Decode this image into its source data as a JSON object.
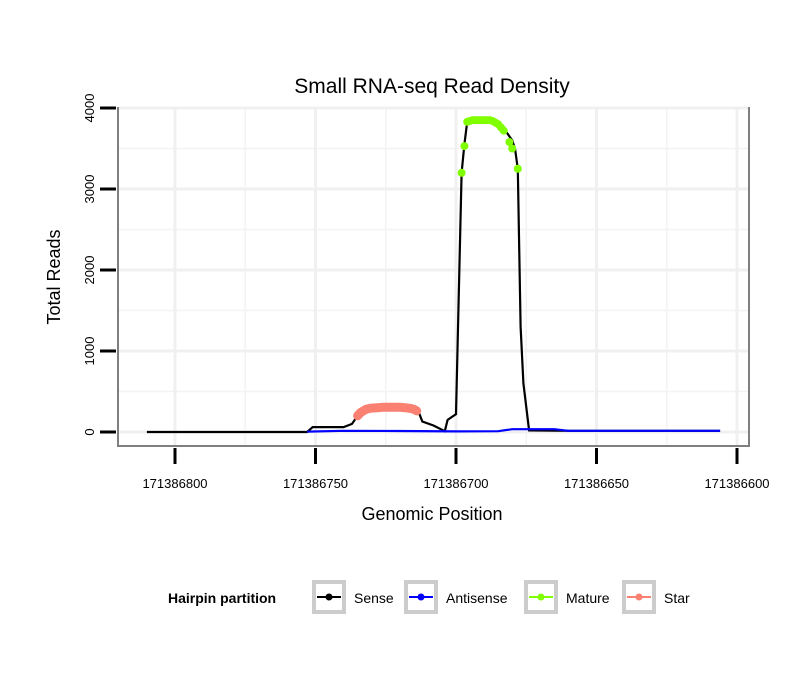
{
  "chart_data": {
    "type": "line",
    "title": "Small RNA-seq Read Density",
    "xlabel": "Genomic Position",
    "ylabel": "Total Reads",
    "xlim": [
      171386820,
      171386595
    ],
    "ylim": [
      -150,
      4150
    ],
    "x_reversed": true,
    "xticks": [
      171386800,
      171386750,
      171386700,
      171386650,
      171386600
    ],
    "xtick_labels": [
      "171386800",
      "171386750",
      "171386700",
      "171386650",
      "171386600"
    ],
    "yticks": [
      0,
      1000,
      2000,
      3000,
      4000
    ],
    "ytick_labels": [
      "0",
      "1000",
      "2000",
      "3000",
      "4000"
    ],
    "grid": true,
    "legend": {
      "title": "Hairpin partition",
      "placement": "bottom",
      "entries": [
        "Sense",
        "Antisense",
        "Mature",
        "Star"
      ]
    },
    "colors": {
      "Sense": "#000000",
      "Antisense": "#0000ff",
      "Mature": "#7fff00",
      "Star": "#fa8072"
    },
    "series": [
      {
        "name": "Sense",
        "points": [
          [
            171386810,
            0
          ],
          [
            171386753,
            0
          ],
          [
            171386751,
            60
          ],
          [
            171386740,
            60
          ],
          [
            171386737,
            100
          ],
          [
            171386735,
            200
          ],
          [
            171386732,
            260
          ],
          [
            171386727,
            300
          ],
          [
            171386720,
            300
          ],
          [
            171386715,
            280
          ],
          [
            171386713,
            220
          ],
          [
            171386712,
            130
          ],
          [
            171386708,
            80
          ],
          [
            171386704,
            10
          ],
          [
            171386703,
            150
          ],
          [
            171386700,
            220
          ],
          [
            171386698,
            3200
          ],
          [
            171386697,
            3550
          ],
          [
            171386696,
            3830
          ],
          [
            171386692,
            3850
          ],
          [
            171386686,
            3850
          ],
          [
            171386683,
            3750
          ],
          [
            171386680,
            3600
          ],
          [
            171386679,
            3500
          ],
          [
            171386678,
            3250
          ],
          [
            171386677,
            1300
          ],
          [
            171386676,
            600
          ],
          [
            171386674,
            20
          ],
          [
            171386660,
            15
          ],
          [
            171386606,
            15
          ]
        ]
      },
      {
        "name": "Antisense",
        "points": [
          [
            171386753,
            5
          ],
          [
            171386740,
            15
          ],
          [
            171386720,
            12
          ],
          [
            171386700,
            8
          ],
          [
            171386685,
            10
          ],
          [
            171386680,
            35
          ],
          [
            171386665,
            35
          ],
          [
            171386660,
            15
          ],
          [
            171386606,
            15
          ]
        ]
      },
      {
        "name": "Mature",
        "points": [
          [
            171386698,
            3200
          ],
          [
            171386697,
            3530
          ],
          [
            171386696,
            3830
          ],
          [
            171386695,
            3840
          ],
          [
            171386694,
            3850
          ],
          [
            171386693,
            3850
          ],
          [
            171386692,
            3850
          ],
          [
            171386691,
            3850
          ],
          [
            171386690,
            3850
          ],
          [
            171386689,
            3850
          ],
          [
            171386688,
            3850
          ],
          [
            171386687,
            3840
          ],
          [
            171386686,
            3820
          ],
          [
            171386685,
            3800
          ],
          [
            171386684,
            3760
          ],
          [
            171386683,
            3720
          ],
          [
            171386681,
            3580
          ],
          [
            171386680,
            3500
          ],
          [
            171386678,
            3250
          ]
        ]
      },
      {
        "name": "Star",
        "points": [
          [
            171386735,
            200
          ],
          [
            171386734,
            240
          ],
          [
            171386733,
            260
          ],
          [
            171386732,
            280
          ],
          [
            171386731,
            290
          ],
          [
            171386730,
            295
          ],
          [
            171386728,
            300
          ],
          [
            171386726,
            305
          ],
          [
            171386724,
            305
          ],
          [
            171386722,
            305
          ],
          [
            171386720,
            305
          ],
          [
            171386718,
            300
          ],
          [
            171386716,
            290
          ],
          [
            171386715,
            280
          ],
          [
            171386714,
            260
          ]
        ]
      }
    ]
  }
}
